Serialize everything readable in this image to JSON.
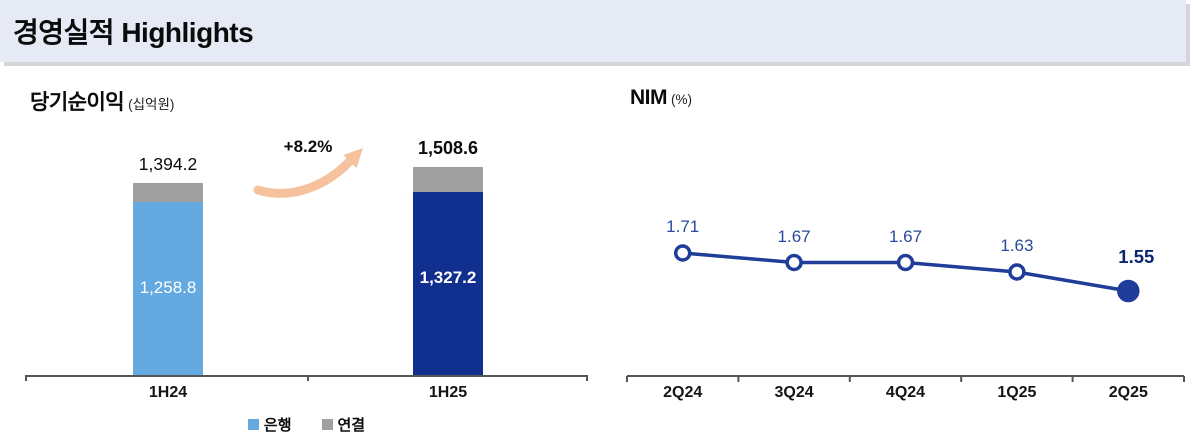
{
  "header": {
    "title": "경영실적 Highlights"
  },
  "net_income": {
    "title": "당기순이익",
    "unit": "(십억원)",
    "growth_label": "+8.2%",
    "legend": [
      {
        "label": "은행",
        "color": "#64a9df"
      },
      {
        "label": "연결",
        "color": "#a0a0a0"
      }
    ]
  },
  "nim": {
    "title": "NIM",
    "unit": "(%)"
  },
  "colors": {
    "bank_1h24": "#64a9df",
    "bank_1h25": "#102f8e",
    "consolidated_cap": "#a0a0a0",
    "nim_line": "#1f3d99",
    "nim_label": "#2a4a9f",
    "nim_label_last": "#0d2470",
    "axis": "#555555",
    "arrow": "#f6c19d",
    "header_bg": "#e6eaf4"
  },
  "chart_data": [
    {
      "type": "bar",
      "title": "당기순이익 (십억원)",
      "stacked": true,
      "categories": [
        "1H24",
        "1H25"
      ],
      "series": [
        {
          "name": "은행",
          "values": [
            1258.8,
            1327.2
          ]
        },
        {
          "name": "연결",
          "note": "gray cap = consolidated total minus bank"
        }
      ],
      "totals": [
        1394.2,
        1508.6
      ],
      "total_labels": [
        "1,394.2",
        "1,508.6"
      ],
      "bank_labels": [
        "1,258.8",
        "1,327.2"
      ],
      "growth_annotation": "+8.2%",
      "ylim": [
        0,
        1600
      ],
      "legend_position": "bottom"
    },
    {
      "type": "line",
      "title": "NIM (%)",
      "categories": [
        "2Q24",
        "3Q24",
        "4Q24",
        "1Q25",
        "2Q25"
      ],
      "values": [
        1.71,
        1.67,
        1.67,
        1.63,
        1.55
      ],
      "value_labels": [
        "1.71",
        "1.67",
        "1.67",
        "1.63",
        "1.55"
      ],
      "marker_style": "open circles, final point filled",
      "grid": false,
      "legend_position": "none"
    }
  ]
}
